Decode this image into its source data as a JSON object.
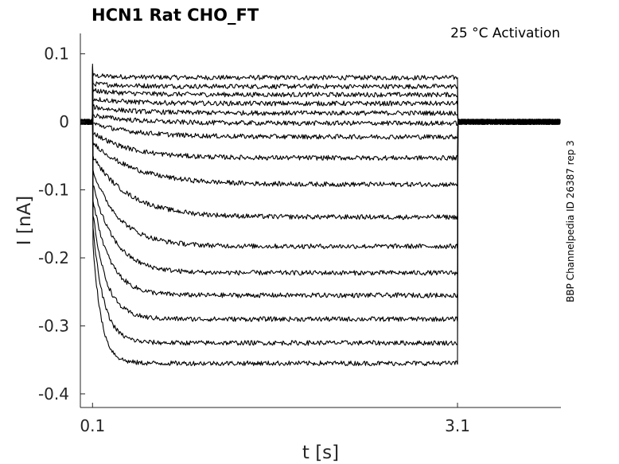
{
  "chart_data": {
    "type": "line",
    "title": "HCN1  Rat  CHO_FT",
    "annotation": "25 °C  Activation",
    "side_label": "BBP Channelpedia ID 26387 rep 3",
    "xlabel": "t [s]",
    "ylabel": "I [nA]",
    "xlim": [
      0.0,
      3.95
    ],
    "ylim": [
      -0.42,
      0.13
    ],
    "x_ticks": [
      0.1,
      3.1
    ],
    "x_tick_labels": [
      "0.1",
      "3.1"
    ],
    "y_ticks": [
      0.1,
      0,
      -0.1,
      -0.2,
      -0.3,
      -0.4
    ],
    "y_tick_labels": [
      "0.1",
      "0",
      "-0.1",
      "-0.2",
      "-0.3",
      "-0.4"
    ],
    "step_start": 0.1,
    "step_end": 3.1,
    "holding_current": 0.0,
    "series": [
      {
        "initial": 0.068,
        "steady": 0.065,
        "tau": 0.3
      },
      {
        "initial": 0.056,
        "steady": 0.052,
        "tau": 0.3
      },
      {
        "initial": 0.046,
        "steady": 0.04,
        "tau": 0.3
      },
      {
        "initial": 0.034,
        "steady": 0.027,
        "tau": 0.3
      },
      {
        "initial": 0.022,
        "steady": 0.013,
        "tau": 0.3
      },
      {
        "initial": 0.01,
        "steady": -0.002,
        "tau": 0.35
      },
      {
        "initial": -0.002,
        "steady": -0.022,
        "tau": 0.35
      },
      {
        "initial": -0.015,
        "steady": -0.053,
        "tau": 0.3
      },
      {
        "initial": -0.03,
        "steady": -0.092,
        "tau": 0.35
      },
      {
        "initial": -0.05,
        "steady": -0.14,
        "tau": 0.3
      },
      {
        "initial": -0.07,
        "steady": -0.183,
        "tau": 0.22
      },
      {
        "initial": -0.09,
        "steady": -0.222,
        "tau": 0.18
      },
      {
        "initial": -0.11,
        "steady": -0.255,
        "tau": 0.14
      },
      {
        "initial": -0.13,
        "steady": -0.29,
        "tau": 0.11
      },
      {
        "initial": -0.15,
        "steady": -0.325,
        "tau": 0.09
      },
      {
        "initial": -0.17,
        "steady": -0.355,
        "tau": 0.07
      }
    ]
  }
}
